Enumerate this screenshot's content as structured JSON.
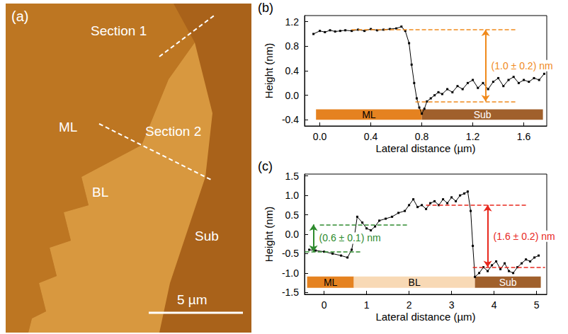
{
  "image": {
    "title": "(a)",
    "sections": [
      "Section 1",
      "Section 2"
    ],
    "scale_bar": "5 µm",
    "regions": [
      {
        "label": "Sub",
        "color": "#a9621a"
      },
      {
        "label": "ML",
        "color": "#bd7622"
      },
      {
        "label": "BL",
        "color": "#d8983f"
      }
    ]
  },
  "chart_data": [
    {
      "type": "line",
      "title": "(b)",
      "x_label": "Lateral distance (µm)",
      "y_label": "Height (nm)",
      "x": [
        -0.05,
        0.0,
        0.04,
        0.08,
        0.12,
        0.16,
        0.2,
        0.25,
        0.3,
        0.35,
        0.4,
        0.45,
        0.5,
        0.55,
        0.6,
        0.64,
        0.67,
        0.7,
        0.72,
        0.74,
        0.76,
        0.78,
        0.8,
        0.82,
        0.84,
        0.87,
        0.9,
        0.93,
        0.96,
        1.0,
        1.04,
        1.08,
        1.12,
        1.16,
        1.2,
        1.24,
        1.28,
        1.32,
        1.36,
        1.4,
        1.44,
        1.48,
        1.52,
        1.56,
        1.6,
        1.64,
        1.68,
        1.72,
        1.76
      ],
      "values": [
        1.0,
        1.05,
        1.03,
        1.06,
        1.04,
        1.05,
        1.06,
        1.05,
        1.07,
        1.05,
        1.08,
        1.06,
        1.07,
        1.08,
        1.09,
        1.12,
        1.05,
        0.85,
        0.5,
        0.2,
        -0.05,
        -0.2,
        -0.3,
        -0.22,
        -0.1,
        -0.05,
        0.0,
        0.05,
        0.02,
        0.1,
        0.05,
        0.15,
        0.1,
        0.2,
        0.25,
        0.12,
        0.2,
        0.1,
        0.22,
        0.28,
        0.15,
        0.25,
        0.3,
        0.2,
        0.25,
        0.22,
        0.28,
        0.25,
        0.35
      ],
      "color": "#000000",
      "marker": "square",
      "grid": false,
      "xlim": [
        -0.12,
        1.78
      ],
      "xticks": [
        {
          "value": 0,
          "label": "0.0"
        },
        0.4,
        0.8,
        1.2,
        1.6
      ],
      "ylim": [
        -0.5,
        1.3
      ],
      "yticks": [
        -0.4,
        {
          "value": 0,
          "label": "0.0"
        },
        0.4,
        0.8,
        1.2
      ],
      "regions": [
        {
          "label": "ML",
          "x": [
            -0.03,
            0.8
          ],
          "y": [
            -0.4,
            -0.23
          ],
          "color": "#e58220"
        },
        {
          "label": "Sub",
          "x": [
            0.8,
            1.75
          ],
          "y": [
            -0.4,
            -0.23
          ],
          "color": "#a0602c"
        }
      ],
      "reference_lines": [
        {
          "y": 1.07,
          "x": [
            0.25,
            1.55
          ],
          "color": "#f08a1c"
        },
        {
          "y": -0.1,
          "x": [
            0.75,
            1.55
          ],
          "color": "#f08a1c"
        }
      ],
      "annotations": [
        {
          "text": "(1.0 ± 0.2) nm",
          "color": "#f08a1c",
          "x": 1.3,
          "y": [
            -0.1,
            1.07
          ]
        }
      ]
    },
    {
      "type": "line",
      "title": "(c)",
      "x_label": "Lateral distance (µm)",
      "y_label": "Height (nm)",
      "x": [
        -0.35,
        -0.2,
        0.0,
        0.2,
        0.4,
        0.55,
        0.65,
        0.72,
        0.78,
        0.9,
        1.0,
        1.1,
        1.2,
        1.3,
        1.45,
        1.6,
        1.75,
        1.9,
        2.0,
        2.1,
        2.2,
        2.3,
        2.4,
        2.5,
        2.6,
        2.7,
        2.8,
        2.9,
        3.0,
        3.1,
        3.2,
        3.3,
        3.38,
        3.45,
        3.5,
        3.55,
        3.65,
        3.75,
        3.85,
        3.95,
        4.05,
        4.15,
        4.25,
        4.35,
        4.45,
        4.55,
        4.65,
        4.75,
        4.85,
        4.95,
        5.05
      ],
      "values": [
        -0.4,
        -0.42,
        -0.45,
        -0.5,
        -0.55,
        -0.6,
        -0.4,
        0.0,
        0.45,
        0.3,
        0.15,
        0.1,
        0.2,
        0.35,
        0.4,
        0.45,
        0.55,
        0.6,
        0.75,
        0.9,
        0.7,
        0.75,
        0.65,
        0.8,
        0.85,
        0.75,
        0.9,
        0.8,
        0.95,
        0.85,
        1.0,
        1.05,
        1.1,
        0.6,
        -0.3,
        -1.1,
        -1.0,
        -0.85,
        -0.95,
        -0.8,
        -0.7,
        -0.9,
        -0.75,
        -0.95,
        -1.0,
        -0.85,
        -0.75,
        -0.65,
        -0.7,
        -0.6,
        -0.55
      ],
      "color": "#000000",
      "marker": "square",
      "grid": false,
      "xlim": [
        -0.46,
        5.24
      ],
      "xticks": [
        0,
        1,
        2,
        3,
        4,
        5
      ],
      "ylim": [
        -1.55,
        1.55
      ],
      "yticks": [
        -1.5,
        {
          "value": -1,
          "label": "-1.0"
        },
        -0.5,
        {
          "value": 0,
          "label": "0.0"
        },
        0.5,
        {
          "value": 1,
          "label": "1.0"
        },
        1.5
      ],
      "regions": [
        {
          "label": "ML",
          "x": [
            -0.4,
            0.7
          ],
          "y": [
            -1.38,
            -1.09
          ],
          "color": "#e58220"
        },
        {
          "label": "BL",
          "x": [
            0.7,
            3.55
          ],
          "y": [
            -1.38,
            -1.09
          ],
          "color": "#f8d9b5"
        },
        {
          "label": "Sub",
          "x": [
            3.55,
            5.1
          ],
          "y": [
            -1.38,
            -1.09
          ],
          "color": "#a0602c"
        }
      ],
      "reference_lines": [
        {
          "y": 0.25,
          "x": [
            -0.1,
            2.0
          ],
          "color": "#2e8b2e"
        },
        {
          "y": -0.45,
          "x": [
            -0.45,
            0.85
          ],
          "color": "#2e8b2e"
        },
        {
          "y": 0.75,
          "x": [
            2.4,
            4.8
          ],
          "color": "#e8281e"
        },
        {
          "y": -0.85,
          "x": [
            3.5,
            5.2
          ],
          "color": "#e8281e"
        }
      ],
      "annotations": [
        {
          "text": "(0.6 ± 0.1) nm",
          "color": "#2e8b2e",
          "x": -0.25,
          "y": [
            -0.45,
            0.25
          ]
        },
        {
          "text": "(1.6 ± 0.2) nm",
          "color": "#e8281e",
          "x": 3.85,
          "y": [
            -0.85,
            0.75
          ]
        }
      ]
    }
  ]
}
